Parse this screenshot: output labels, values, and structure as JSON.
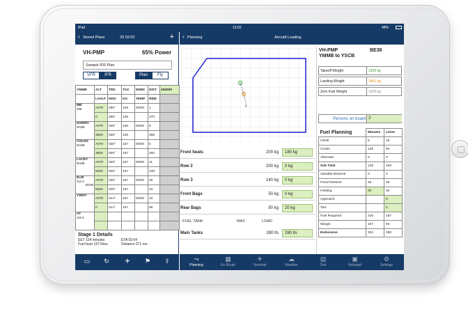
{
  "statusbar": {
    "carrier": "iPad",
    "time": "13:02",
    "battery": "48%"
  },
  "left": {
    "nav": {
      "back": "Stored Plans",
      "time": "29 02:02",
      "add": "+"
    },
    "reg": "VH-PMP",
    "power": "65% Power",
    "plan_name": "Sample IFR Plan",
    "seg1": [
      "VFR",
      "IFR"
    ],
    "seg2": [
      "Plan",
      "Fly"
    ],
    "header1": [
      "YMMB",
      "ALT",
      "TRK",
      "TAS",
      "WIND",
      "DIST",
      "160000"
    ],
    "header2": [
      "",
      "LSALT",
      "HDG",
      "GS",
      "TEMP",
      "REM",
      ""
    ],
    "waypoints": [
      {
        "name": "MB",
        "sub": "398",
        "r1": [
          "A070",
          "255°",
          "105",
          "000/0",
          "1",
          ""
        ],
        "r2": [
          "0",
          "255°",
          "105",
          "",
          "270",
          ""
        ]
      },
      {
        "name": "HARRO",
        "sub": "W188",
        "r1": [
          "A070",
          "026°",
          "105",
          "000/0",
          "5",
          ""
        ],
        "r2": [
          "3600",
          "026°",
          "105",
          "",
          "265",
          ""
        ]
      },
      {
        "name": "COLDS",
        "sub": "W188",
        "r1": [
          "A070",
          "026°",
          "157",
          "000/0",
          "5",
          ""
        ],
        "r2": [
          "3600",
          "026°",
          "157",
          "",
          "260",
          ""
        ]
      },
      {
        "name": "LACEY",
        "sub": "W188",
        "r1": [
          "A070",
          "026°",
          "157",
          "000/0",
          "11",
          ""
        ],
        "r2": [
          "5200",
          "026°",
          "157",
          "",
          "249",
          ""
        ]
      },
      {
        "name": "ELW",
        "sub": "112.3",
        "sub2": "W188",
        "r1": [
          "A070",
          "026°",
          "157",
          "000/0",
          "26",
          ""
        ],
        "r2": [
          "5500",
          "026°",
          "157",
          "",
          "10",
          ""
        ]
      },
      {
        "name": "YWGT",
        "sub": "",
        "r1": [
          "A070",
          "014°",
          "157",
          "000/0",
          "23",
          ""
        ],
        "r2": [
          "0",
          "014°",
          "157",
          "",
          "88",
          ""
        ]
      },
      {
        "name": "AY",
        "sub": "115.6",
        "r1": [
          "",
          "",
          "",
          "",
          "",
          ""
        ],
        "r2": [
          "",
          "",
          "",
          "",
          "",
          ""
        ]
      }
    ],
    "stage": {
      "title": "Stage 1 Details",
      "eet": "EET 124 minutes",
      "eta": "ETA 02:04",
      "burn": "Fuel burn 147 litres",
      "dist": "Distance 271 nm"
    },
    "toolbar": [
      "folder-icon",
      "refresh-icon",
      "plane-icon",
      "flag-icon",
      "share-icon"
    ]
  },
  "right": {
    "nav": {
      "back": "Planning",
      "title": "Aircraft Loading"
    },
    "loading": [
      {
        "name": "Front Seats",
        "max": "200 kg",
        "value": "180 kg"
      },
      {
        "name": "Row 2",
        "max": "200 kg",
        "value": "0 kg"
      },
      {
        "name": "Row 3",
        "max": "140 kg",
        "value": "0 kg"
      },
      {
        "name": "Front Bags",
        "max": "50 kg",
        "value": "0 kg"
      },
      {
        "name": "Rear Bags",
        "max": "50 kg",
        "value": "20 kg"
      }
    ],
    "tank_header": {
      "tank": "FUEL TANK",
      "max": "MAX",
      "load": "LOAD"
    },
    "tank": {
      "name": "Main Tanks",
      "max": "280 lts",
      "value": "280 lts"
    },
    "summary": {
      "reg": "VH-PMP",
      "route": "YMMB to YSCB",
      "type": "BE36",
      "weights": [
        {
          "name": "Takeoff Weight",
          "value": "1505 kg",
          "color": "#3a9a2a"
        },
        {
          "name": "Landing Weight",
          "value": "1401 kg",
          "color": "#e08a00"
        },
        {
          "name": "Zero Fuel Weight",
          "value": "1309 kg",
          "color": "#888888"
        }
      ],
      "pob_label": "Persons on board",
      "pob_value": "2",
      "fuel_title": "Fuel Planning",
      "fuel_cols": [
        "Minutes",
        "Litres"
      ],
      "fuel_rows": [
        {
          "name": "Climb",
          "min": "5",
          "lit": "19"
        },
        {
          "name": "Cruise",
          "min": "125",
          "lit": "94"
        },
        {
          "name": "Alternate",
          "min": "0",
          "lit": "0"
        },
        {
          "name": "Sub Total",
          "min": "125",
          "lit": "109"
        },
        {
          "name": "Variable Reserve",
          "min": "0",
          "lit": "0"
        },
        {
          "name": "Fixed Reserve",
          "min": "45",
          "lit": "40"
        },
        {
          "name": "Holding",
          "min": "45",
          "lit": "34"
        },
        {
          "name": "Approach",
          "min": "",
          "lit": "0"
        },
        {
          "name": "Taxi",
          "min": "",
          "lit": "4"
        },
        {
          "name": "Fuel Required",
          "min": "215",
          "lit": "187"
        },
        {
          "name": "Margin",
          "min": "107",
          "lit": "93"
        },
        {
          "name": "Endurance",
          "min": "322",
          "lit": "280"
        }
      ]
    },
    "tabs": [
      {
        "label": "Planning",
        "icon": "route-icon"
      },
      {
        "label": "En Route",
        "icon": "map-icon"
      },
      {
        "label": "Terminal",
        "icon": "plane-icon"
      },
      {
        "label": "Weather",
        "icon": "cloud-icon"
      },
      {
        "label": "Text",
        "icon": "text-icon"
      },
      {
        "label": "Notepad",
        "icon": "notepad-icon"
      },
      {
        "label": "Settings",
        "icon": "gear-icon"
      }
    ]
  },
  "colors": {
    "nav": "#163a66",
    "field": "#dcefc0",
    "envelope": "#1a1ad0"
  }
}
